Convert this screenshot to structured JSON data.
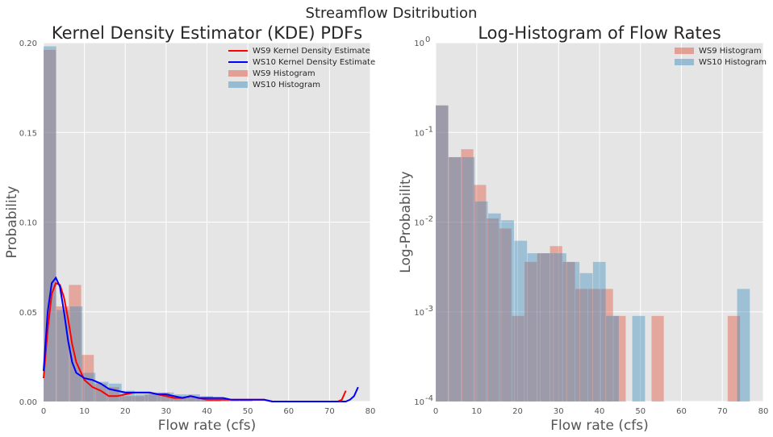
{
  "figure": {
    "suptitle": "Streamflow Dsitribution"
  },
  "colors": {
    "ws9": "#e24a33",
    "ws10": "#348abd",
    "kde_ws9": "#ff0000",
    "kde_ws10": "#0000ff",
    "panel_bg": "#e5e5e5",
    "grid": "#ffffff"
  },
  "chart_data": [
    {
      "type": "histogram",
      "title": "Kernel Density Estimator (KDE) PDFs",
      "xlabel": "Flow rate (cfs)",
      "ylabel": "Probability",
      "xlim": [
        0,
        80
      ],
      "ylim": [
        0,
        0.2
      ],
      "xticks": [
        0,
        10,
        20,
        30,
        40,
        50,
        60,
        70,
        80
      ],
      "yticks": [
        0.0,
        0.05,
        0.1,
        0.15,
        0.2
      ],
      "ytick_labels": [
        "0.00",
        "0.05",
        "0.10",
        "0.15",
        "0.20"
      ],
      "bin_width": 3.1,
      "grid": true,
      "legend_position": "top-right",
      "legend": [
        "WS9 Kernel Density Estimate",
        "WS10 Kernel Density Estimate",
        "WS9 Histogram",
        "WS10 Histogram"
      ],
      "histograms": [
        {
          "name": "WS9 Histogram",
          "bin_start": 0,
          "bin_width": 3.1,
          "values": [
            0.196,
            0.053,
            0.065,
            0.026,
            0.01,
            0.008,
            0.003,
            0.003,
            0.004,
            0.005,
            0.003,
            0.003,
            0.002,
            0.001,
            0.0,
            0.0,
            0.0,
            0.0,
            0.0,
            0.0,
            0.0,
            0.0,
            0.0,
            0.0
          ]
        },
        {
          "name": "WS10 Histogram",
          "bin_start": 0,
          "bin_width": 3.2,
          "values": [
            0.198,
            0.051,
            0.053,
            0.016,
            0.011,
            0.01,
            0.006,
            0.004,
            0.005,
            0.005,
            0.004,
            0.004,
            0.003,
            0.002,
            0.001,
            0.001,
            0.0,
            0.0,
            0.0,
            0.0,
            0.0,
            0.0,
            0.0,
            0.0
          ]
        }
      ],
      "kde": [
        {
          "name": "WS9 Kernel Density Estimate",
          "x": [
            0,
            1,
            2,
            3,
            4,
            5,
            6,
            7,
            8,
            10,
            12,
            14,
            16,
            18,
            20,
            22,
            24,
            26,
            28,
            30,
            32,
            34,
            36,
            38,
            40,
            42,
            44,
            46,
            48,
            50,
            52,
            54,
            56,
            58,
            60,
            62,
            64,
            66,
            68,
            70,
            72,
            73,
            74
          ],
          "y": [
            0.013,
            0.04,
            0.06,
            0.066,
            0.065,
            0.058,
            0.046,
            0.032,
            0.022,
            0.012,
            0.008,
            0.006,
            0.003,
            0.003,
            0.004,
            0.005,
            0.005,
            0.005,
            0.004,
            0.003,
            0.002,
            0.002,
            0.003,
            0.002,
            0.001,
            0.001,
            0.001,
            0.001,
            0.001,
            0.001,
            0.001,
            0.001,
            0.0,
            0.0,
            0.0,
            0.0,
            0.0,
            0.0,
            0.0,
            0.0,
            0.0,
            0.001,
            0.006
          ]
        },
        {
          "name": "WS10 Kernel Density Estimate",
          "x": [
            0,
            1,
            2,
            3,
            4,
            5,
            6,
            7,
            8,
            10,
            12,
            14,
            16,
            18,
            20,
            22,
            24,
            26,
            28,
            30,
            32,
            34,
            36,
            38,
            40,
            42,
            44,
            46,
            48,
            50,
            52,
            54,
            56,
            58,
            60,
            62,
            64,
            66,
            68,
            70,
            72,
            74,
            75,
            76,
            77
          ],
          "y": [
            0.017,
            0.05,
            0.066,
            0.069,
            0.064,
            0.05,
            0.034,
            0.022,
            0.016,
            0.013,
            0.012,
            0.01,
            0.007,
            0.006,
            0.005,
            0.005,
            0.005,
            0.005,
            0.004,
            0.004,
            0.003,
            0.002,
            0.003,
            0.002,
            0.002,
            0.002,
            0.002,
            0.001,
            0.001,
            0.001,
            0.001,
            0.001,
            0.0,
            0.0,
            0.0,
            0.0,
            0.0,
            0.0,
            0.0,
            0.0,
            0.0,
            0.0,
            0.001,
            0.003,
            0.008
          ]
        }
      ]
    },
    {
      "type": "histogram",
      "title": "Log-Histogram of Flow Rates",
      "xlabel": "Flow rate (cfs)",
      "ylabel": "Log-Probability",
      "xlim": [
        0,
        80
      ],
      "ylim": [
        0.0001,
        1
      ],
      "yscale": "log",
      "xticks": [
        0,
        10,
        20,
        30,
        40,
        50,
        60,
        70,
        80
      ],
      "ytick_values": [
        0.0001,
        0.001,
        0.01,
        0.1,
        1
      ],
      "ytick_labels": [
        [
          "10",
          "-4"
        ],
        [
          "10",
          "-3"
        ],
        [
          "10",
          "-2"
        ],
        [
          "10",
          "-1"
        ],
        [
          "10",
          "0"
        ]
      ],
      "grid": true,
      "legend_position": "top-right",
      "legend": [
        "WS9 Histogram",
        "WS10 Histogram"
      ],
      "histograms": [
        {
          "name": "WS9 Histogram",
          "bin_start": 0,
          "bin_width": 3.1,
          "values": [
            0.2,
            0.053,
            0.065,
            0.026,
            0.011,
            0.0085,
            0.0009,
            0.0036,
            0.0045,
            0.0054,
            0.0036,
            0.0018,
            0.0018,
            0.0018,
            0.0009,
            0.0,
            0.0,
            0.0009,
            0.0,
            0.0,
            0.0,
            0.0,
            0.0,
            0.0009
          ]
        },
        {
          "name": "WS10 Histogram",
          "bin_start": 0,
          "bin_width": 3.2,
          "values": [
            0.2,
            0.053,
            0.053,
            0.017,
            0.0125,
            0.0105,
            0.0062,
            0.0045,
            0.0045,
            0.0045,
            0.0036,
            0.0027,
            0.0036,
            0.0009,
            0.0,
            0.0009,
            0.0,
            0.0,
            0.0,
            0.0,
            0.0,
            0.0,
            0.0,
            0.0018
          ]
        }
      ]
    }
  ]
}
